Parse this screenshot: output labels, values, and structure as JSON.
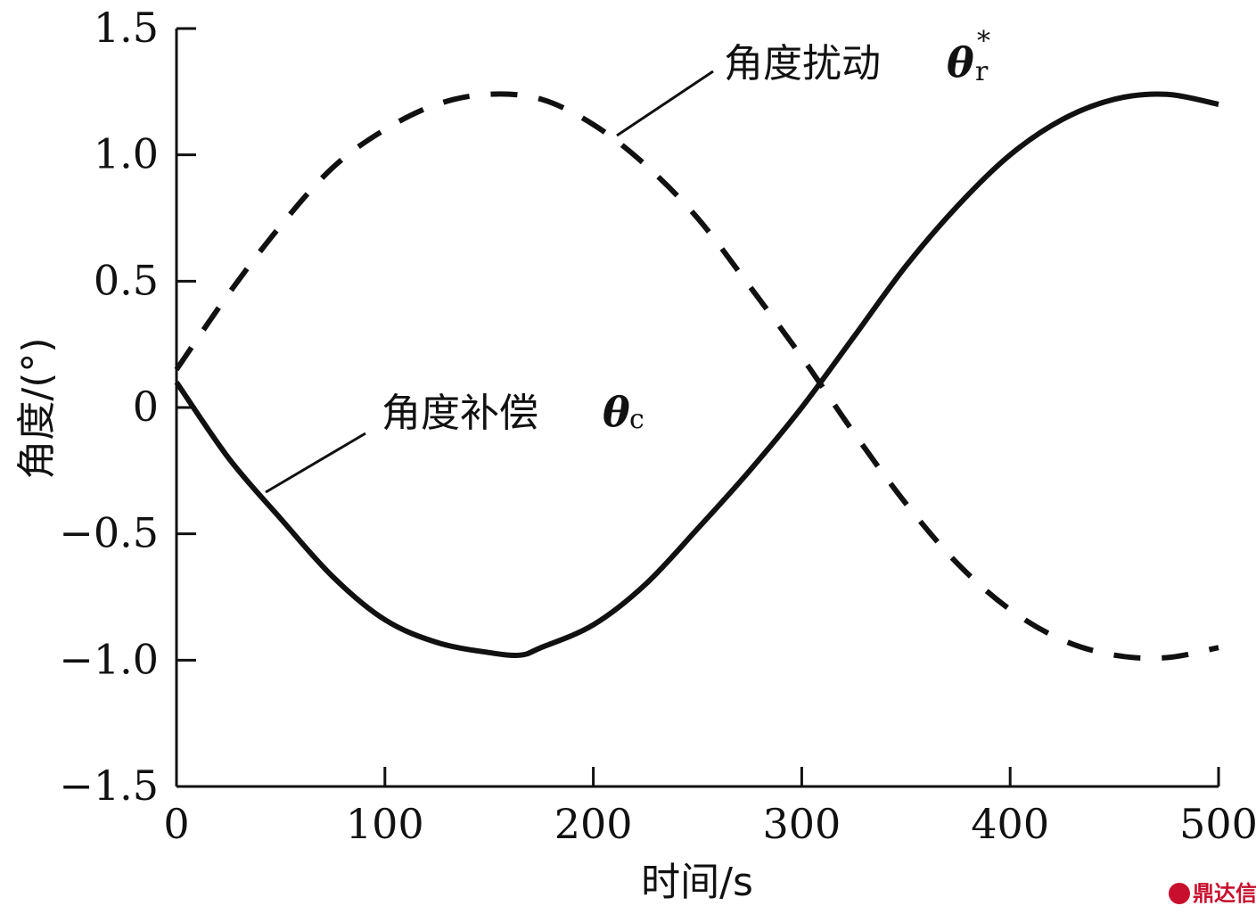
{
  "chart_data": {
    "type": "line",
    "xlabel": "时间/s",
    "ylabel": "角度/(°)",
    "xlim": [
      0,
      500
    ],
    "ylim": [
      -1.5,
      1.5
    ],
    "x_ticks": [
      0,
      100,
      200,
      300,
      400,
      500
    ],
    "x_tick_labels": [
      "0",
      "100",
      "200",
      "300",
      "400",
      "500"
    ],
    "y_ticks": [
      1.5,
      1.0,
      0.5,
      0,
      -0.5,
      -1.0,
      -1.5
    ],
    "y_tick_labels": [
      "1.5",
      "1.0",
      "0.5",
      "0",
      "−0.5",
      "−1.0",
      "−1.5"
    ],
    "grid": false,
    "series": [
      {
        "name": "角度扰动 θr*",
        "style": "dashed",
        "color": "#111111",
        "x": [
          0,
          25,
          50,
          75,
          100,
          125,
          150,
          175,
          200,
          225,
          250,
          275,
          300,
          325,
          350,
          375,
          400,
          425,
          450,
          475,
          500
        ],
        "y": [
          0.15,
          0.45,
          0.72,
          0.95,
          1.1,
          1.2,
          1.24,
          1.22,
          1.12,
          0.96,
          0.75,
          0.48,
          0.2,
          -0.1,
          -0.38,
          -0.62,
          -0.8,
          -0.92,
          -0.98,
          -0.99,
          -0.95
        ]
      },
      {
        "name": "角度补偿 θc",
        "style": "solid",
        "color": "#111111",
        "x": [
          0,
          25,
          50,
          75,
          100,
          125,
          150,
          165,
          175,
          200,
          225,
          250,
          275,
          300,
          325,
          350,
          375,
          400,
          425,
          450,
          475,
          500
        ],
        "y": [
          0.1,
          -0.2,
          -0.44,
          -0.67,
          -0.84,
          -0.93,
          -0.97,
          -0.98,
          -0.95,
          -0.86,
          -0.7,
          -0.48,
          -0.25,
          0.0,
          0.28,
          0.56,
          0.8,
          1.0,
          1.14,
          1.22,
          1.24,
          1.2
        ]
      }
    ],
    "annotations": [
      {
        "text": "角度扰动",
        "symbol": "θ",
        "subscript": "r",
        "superscript": "*",
        "target_series": 0
      },
      {
        "text": "角度补偿",
        "symbol": "θ",
        "subscript": "c",
        "target_series": 1
      }
    ]
  },
  "watermark": {
    "text": "鼎达信",
    "color": "#c8102e"
  }
}
